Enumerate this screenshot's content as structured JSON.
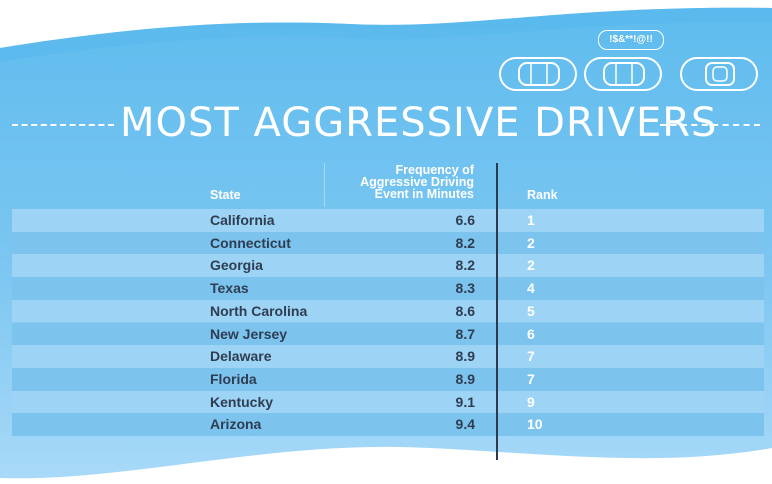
{
  "title": "MOST AGGRESSIVE DRIVERS",
  "speech_bubble": "!$&**!@!!",
  "colors": {
    "band_top": "#5fbdee",
    "band_bottom": "#a3d6f7",
    "row_odd": "#9dd3f4",
    "row_even": "#7cc4ee",
    "state_text": "#2f3d52",
    "rank_text": "#ffffff",
    "divider": "#2b3a4f"
  },
  "icons": [
    "car-icon",
    "car-icon",
    "car-icon",
    "speech-bubble-icon"
  ],
  "chart_data": {
    "type": "table",
    "columns": [
      "State",
      "Frequency of Aggressive Driving Event in Minutes",
      "Rank"
    ],
    "header_lines": [
      "Frequency of",
      "Aggressive Driving",
      "Event in Minutes"
    ],
    "rows": [
      {
        "state": "California",
        "frequency": "6.6",
        "rank": "1"
      },
      {
        "state": "Connecticut",
        "frequency": "8.2",
        "rank": "2"
      },
      {
        "state": "Georgia",
        "frequency": "8.2",
        "rank": "2"
      },
      {
        "state": "Texas",
        "frequency": "8.3",
        "rank": "4"
      },
      {
        "state": "North Carolina",
        "frequency": "8.6",
        "rank": "5"
      },
      {
        "state": "New Jersey",
        "frequency": "8.7",
        "rank": "6"
      },
      {
        "state": "Delaware",
        "frequency": "8.9",
        "rank": "7"
      },
      {
        "state": "Florida",
        "frequency": "8.9",
        "rank": "7"
      },
      {
        "state": "Kentucky",
        "frequency": "9.1",
        "rank": "9"
      },
      {
        "state": "Arizona",
        "frequency": "9.4",
        "rank": "10"
      }
    ]
  }
}
